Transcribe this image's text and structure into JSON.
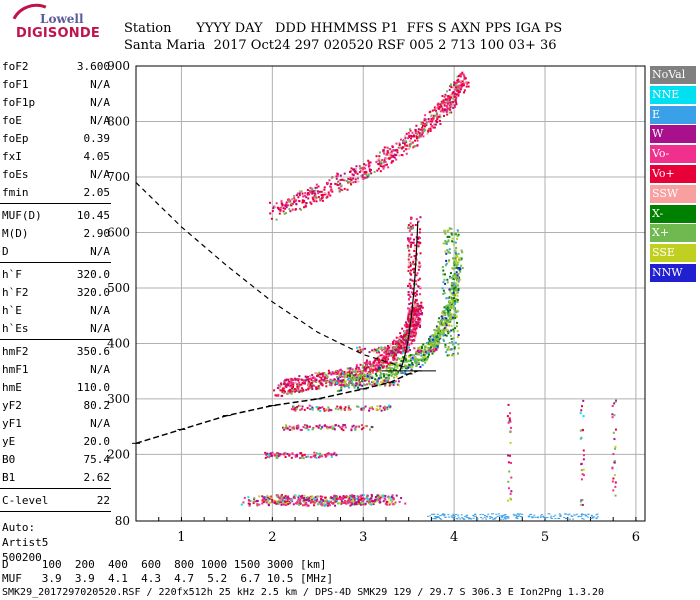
{
  "logo": {
    "line1": "Lowell",
    "line2": "DIGISONDE"
  },
  "header": {
    "line1": "Station      YYYY DAY   DDD HHMMSS P1  FFS S AXN PPS IGA PS",
    "line2": "Santa Maria  2017 Oct24 297 020520 RSF 005 2 713 100 03+ 36"
  },
  "sidebar": {
    "group1": [
      {
        "k": "foF2",
        "v": "3.600"
      },
      {
        "k": "foF1",
        "v": "N/A"
      },
      {
        "k": "foF1p",
        "v": "N/A"
      },
      {
        "k": "foE",
        "v": "N/A"
      },
      {
        "k": "foEp",
        "v": "0.39"
      },
      {
        "k": "fxI",
        "v": "4.05"
      },
      {
        "k": "foEs",
        "v": "N/A"
      },
      {
        "k": "fmin",
        "v": "2.05"
      }
    ],
    "group2": [
      {
        "k": "MUF(D)",
        "v": "10.45"
      },
      {
        "k": "M(D)",
        "v": "2.90"
      },
      {
        "k": "D",
        "v": "N/A"
      }
    ],
    "group3": [
      {
        "k": "h`F",
        "v": "320.0"
      },
      {
        "k": "h`F2",
        "v": "320.0"
      },
      {
        "k": "h`E",
        "v": "N/A"
      },
      {
        "k": "h`Es",
        "v": "N/A"
      }
    ],
    "group4": [
      {
        "k": "hmF2",
        "v": "350.6"
      },
      {
        "k": "hmF1",
        "v": "N/A"
      },
      {
        "k": "hmE",
        "v": "110.0"
      },
      {
        "k": "yF2",
        "v": "80.2"
      },
      {
        "k": "yF1",
        "v": "N/A"
      },
      {
        "k": "yE",
        "v": "20.0"
      },
      {
        "k": "B0",
        "v": "75.4"
      },
      {
        "k": "B1",
        "v": "2.62"
      }
    ],
    "group5": [
      {
        "k": "C-level",
        "v": "22"
      }
    ],
    "auto": [
      "Auto:",
      "Artist5",
      "500200"
    ]
  },
  "legend": [
    {
      "label": "NoVal",
      "color": "#808080"
    },
    {
      "label": "NNE",
      "color": "#00e0f0"
    },
    {
      "label": "E",
      "color": "#3aa0e8"
    },
    {
      "label": "W",
      "color": "#a8108c"
    },
    {
      "label": "Vo-",
      "color": "#f0308c"
    },
    {
      "label": "Vo+",
      "color": "#e80038"
    },
    {
      "label": "SSW",
      "color": "#f8a0a0"
    },
    {
      "label": "X-",
      "color": "#008000"
    },
    {
      "label": "X+",
      "color": "#70b850"
    },
    {
      "label": "SSE",
      "color": "#c0d020"
    },
    {
      "label": "NNW",
      "color": "#2020d0"
    }
  ],
  "footer": {
    "row1": "D     100  200  400  600  800 1000 1500 3000 [km]",
    "row2": "MUF   3.9  3.9  4.1  4.3  4.7  5.2  6.7 10.5 [MHz]",
    "row3": "SMK29_2017297020520.RSF / 220fx512h 25 kHz 2.5 km / DPS-4D SMK29 129 / 29.7 S 306.3 E Ion2Png 1.3.20"
  },
  "chart_data": {
    "type": "scatter",
    "title": "",
    "xlabel": "",
    "ylabel": "",
    "xlim": [
      0.5,
      6.1
    ],
    "ylim": [
      80,
      900
    ],
    "xticks": [
      1,
      2,
      3,
      4,
      5,
      6
    ],
    "yticks": [
      80,
      200,
      300,
      400,
      500,
      600,
      700,
      800,
      900
    ],
    "grid": true,
    "legend_position": "right",
    "traces": {
      "o_F2": {
        "x": [
          2.05,
          2.5,
          3.0,
          3.3,
          3.5,
          3.6
        ],
        "y": [
          320,
          335,
          350,
          380,
          420,
          470
        ]
      },
      "o_F2_2hop": {
        "x": [
          2.0,
          2.6,
          3.2,
          3.6,
          3.9,
          4.1
        ],
        "y": [
          640,
          680,
          730,
          780,
          830,
          880
        ]
      },
      "x_F2": {
        "x": [
          2.7,
          3.2,
          3.6,
          3.8,
          3.95,
          4.05
        ],
        "y": [
          330,
          345,
          375,
          410,
          460,
          560
        ]
      },
      "es_band": {
        "x": [
          1.8,
          2.2,
          2.6,
          3.0,
          3.3
        ],
        "y": [
          118,
          120,
          117,
          121,
          119
        ]
      }
    },
    "profile": {
      "x": [
        0.5,
        1.0,
        1.5,
        2.0,
        2.5,
        3.0,
        3.3,
        3.5,
        3.6
      ],
      "y": [
        220,
        245,
        270,
        288,
        300,
        318,
        330,
        345,
        350.6
      ]
    },
    "muf_curve": {
      "x": [
        0.5,
        1.0,
        1.5,
        2.0,
        2.5,
        3.0,
        3.5
      ],
      "y": [
        690,
        610,
        540,
        475,
        420,
        380,
        355
      ]
    }
  }
}
